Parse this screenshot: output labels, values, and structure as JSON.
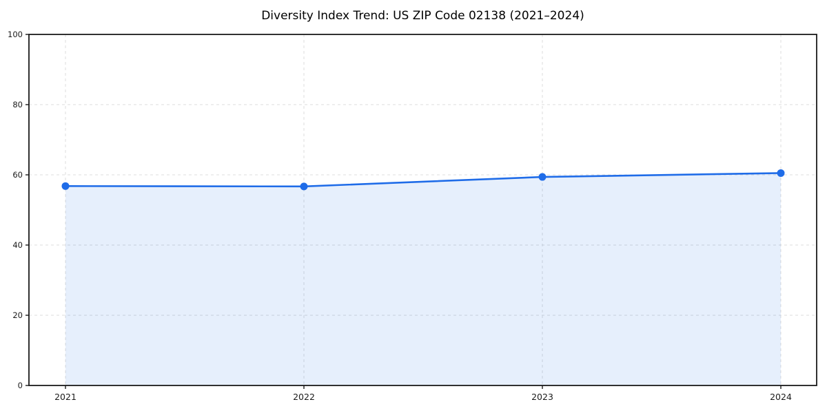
{
  "chart_data": {
    "type": "line",
    "title": "Diversity Index Trend: US ZIP Code 02138 (2021–2024)",
    "categories": [
      "2021",
      "2022",
      "2023",
      "2024"
    ],
    "series": [
      {
        "name": "Diversity Index",
        "values": [
          56.8,
          56.7,
          59.4,
          60.5
        ]
      }
    ],
    "xlabel": "",
    "ylabel": "",
    "ylim": [
      0,
      100
    ],
    "yticks": [
      0,
      20,
      40,
      60,
      80,
      100
    ],
    "grid": true,
    "grid_style": "dashed",
    "legend_position": "none",
    "marker": "circle",
    "fill_area_to_zero": true,
    "colors": {
      "line": "#1f6ce8",
      "marker": "#1f6ce8",
      "area_fill": "rgba(31,108,232,0.11)",
      "gridline": "#dcdcdc",
      "spine": "#1a1a1a",
      "tick_label": "#1a1a1a",
      "background": "#ffffff"
    }
  }
}
